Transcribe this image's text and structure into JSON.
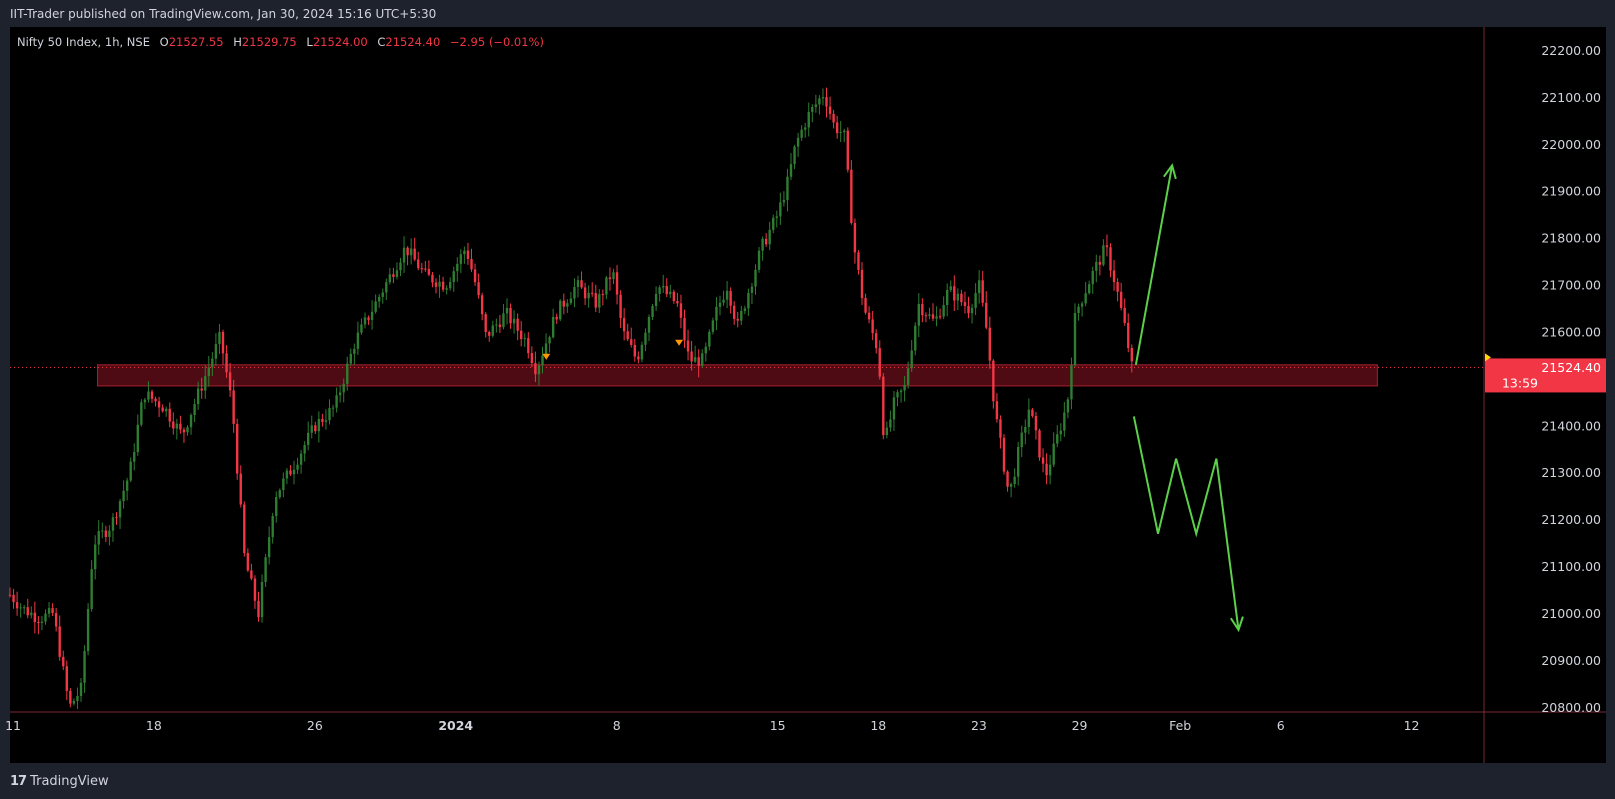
{
  "header": {
    "published": "IIT-Trader published on TradingView.com, Jan 30, 2024 15:16 UTC+5:30"
  },
  "legend": {
    "symbol": "Nifty 50 Index, 1h, NSE",
    "open_label": "O",
    "open": "21527.55",
    "high_label": "H",
    "high": "21529.75",
    "low_label": "L",
    "low": "21524.00",
    "close_label": "C",
    "close": "21524.40",
    "change": "−2.95 (−0.01%)"
  },
  "footer": {
    "brand": "TradingView"
  },
  "colors": {
    "up": "#2f7d32",
    "down": "#f23645",
    "zone": "#5c0d17",
    "arrows": "#5cd04a",
    "marker": "#ff9800",
    "axis": "#d1d4dc"
  },
  "chart_data": {
    "type": "candlestick",
    "symbol": "Nifty 50 Index",
    "interval": "1h",
    "y_ticks": [
      "22200.00",
      "22100.00",
      "22000.00",
      "21900.00",
      "21800.00",
      "21700.00",
      "21600.00",
      "21400.00",
      "21300.00",
      "21200.00",
      "21100.00",
      "21000.00",
      "20900.00",
      "20800.00"
    ],
    "ylim": [
      20790,
      22250
    ],
    "x_ticks": [
      {
        "label": "11",
        "x": 11,
        "bold": false
      },
      {
        "label": "18",
        "x": 18,
        "bold": false
      },
      {
        "label": "26",
        "x": 26,
        "bold": false
      },
      {
        "label": "2024",
        "x": 33,
        "bold": true
      },
      {
        "label": "8",
        "x": 41,
        "bold": false
      },
      {
        "label": "15",
        "x": 49,
        "bold": false
      },
      {
        "label": "18",
        "x": 54,
        "bold": false
      },
      {
        "label": "23",
        "x": 59,
        "bold": false
      },
      {
        "label": "29",
        "x": 64,
        "bold": false
      },
      {
        "label": "Feb",
        "x": 69,
        "bold": false
      },
      {
        "label": "6",
        "x": 74,
        "bold": false
      },
      {
        "label": "12",
        "x": 80.5,
        "bold": false
      }
    ],
    "xlim": [
      10.85,
      84.1
    ],
    "price_label": {
      "value": "21524.40",
      "countdown": "13:59"
    },
    "last_price": 21524.4,
    "zone": {
      "x_start": 15.2,
      "x_end": 78.8,
      "low": 21485,
      "high": 21530
    },
    "path": [
      [
        10.85,
        21040
      ],
      [
        11.5,
        21010
      ],
      [
        12.3,
        20990
      ],
      [
        13.0,
        21000
      ],
      [
        13.8,
        20800
      ],
      [
        14.4,
        20840
      ],
      [
        15.0,
        21150
      ],
      [
        15.9,
        21190
      ],
      [
        16.8,
        21300
      ],
      [
        17.5,
        21470
      ],
      [
        18.5,
        21440
      ],
      [
        19.4,
        21380
      ],
      [
        20.5,
        21500
      ],
      [
        21.3,
        21590
      ],
      [
        21.9,
        21440
      ],
      [
        22.5,
        21120
      ],
      [
        23.2,
        21000
      ],
      [
        24.0,
        21250
      ],
      [
        25.0,
        21320
      ],
      [
        26.0,
        21400
      ],
      [
        27.0,
        21440
      ],
      [
        28.0,
        21580
      ],
      [
        29.5,
        21700
      ],
      [
        30.5,
        21780
      ],
      [
        31.5,
        21720
      ],
      [
        32.5,
        21700
      ],
      [
        33.5,
        21780
      ],
      [
        34.0,
        21700
      ],
      [
        34.5,
        21590
      ],
      [
        35.5,
        21640
      ],
      [
        36.5,
        21580
      ],
      [
        37.0,
        21520
      ],
      [
        38.0,
        21640
      ],
      [
        39.0,
        21700
      ],
      [
        40.0,
        21660
      ],
      [
        40.8,
        21730
      ],
      [
        41.3,
        21600
      ],
      [
        42.0,
        21540
      ],
      [
        43.0,
        21700
      ],
      [
        44.0,
        21660
      ],
      [
        44.6,
        21540
      ],
      [
        45.3,
        21540
      ],
      [
        46.0,
        21650
      ],
      [
        46.5,
        21700
      ],
      [
        47.0,
        21610
      ],
      [
        47.5,
        21680
      ],
      [
        48.2,
        21780
      ],
      [
        49.0,
        21850
      ],
      [
        49.5,
        21920
      ],
      [
        49.9,
        22000
      ],
      [
        50.5,
        22060
      ],
      [
        51.3,
        22110
      ],
      [
        51.8,
        22040
      ],
      [
        52.3,
        22020
      ],
      [
        52.8,
        21780
      ],
      [
        53.3,
        21650
      ],
      [
        54.0,
        21560
      ],
      [
        54.3,
        21360
      ],
      [
        54.8,
        21450
      ],
      [
        55.3,
        21480
      ],
      [
        56.0,
        21660
      ],
      [
        56.8,
        21620
      ],
      [
        57.5,
        21690
      ],
      [
        58.5,
        21650
      ],
      [
        59.0,
        21700
      ],
      [
        59.4,
        21600
      ],
      [
        59.8,
        21430
      ],
      [
        60.5,
        21250
      ],
      [
        61.0,
        21350
      ],
      [
        61.5,
        21440
      ],
      [
        62.3,
        21290
      ],
      [
        63.0,
        21390
      ],
      [
        63.4,
        21450
      ],
      [
        63.8,
        21640
      ],
      [
        64.6,
        21720
      ],
      [
        65.3,
        21780
      ],
      [
        65.8,
        21700
      ],
      [
        66.3,
        21600
      ],
      [
        66.6,
        21524.4
      ]
    ],
    "annotations": [
      {
        "type": "arrow",
        "points": [
          [
            66.8,
            21530
          ],
          [
            68.6,
            21955
          ]
        ]
      },
      {
        "type": "arrow",
        "points": [
          [
            66.7,
            21420
          ],
          [
            67.9,
            21170
          ],
          [
            68.8,
            21330
          ],
          [
            69.8,
            21170
          ],
          [
            70.8,
            21330
          ],
          [
            71.9,
            20965
          ]
        ]
      },
      {
        "type": "marker",
        "x": 37.5,
        "y": 21545
      },
      {
        "type": "marker",
        "x": 44.1,
        "y": 21575
      }
    ]
  }
}
